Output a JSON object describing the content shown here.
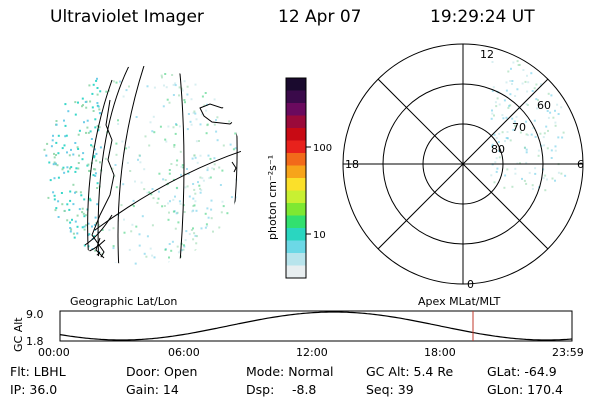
{
  "header": {
    "instrument": "Ultraviolet Imager",
    "date": "12 Apr 07",
    "time": "19:29:24 UT"
  },
  "colorbar": {
    "unit_label": "photon cm⁻²s⁻¹",
    "tick_labels": [
      "100",
      "10"
    ],
    "colors_top_to_bottom": [
      "#1a0a2e",
      "#3a0a4a",
      "#6a0a5e",
      "#9a0a3a",
      "#c80a14",
      "#e8221c",
      "#f26a1a",
      "#f7a41a",
      "#fbe02a",
      "#c8f032",
      "#7ee832",
      "#32e06e",
      "#2ad6c0",
      "#6cd8e6",
      "#b8e4ec",
      "#e8eef0"
    ]
  },
  "left_panel": {
    "caption": "Geographic Lat/Lon",
    "point_colors": [
      "#22d3c3",
      "#5ec8e6",
      "#8fd6a8",
      "#b8e2e6",
      "#2ecc71"
    ]
  },
  "right_panel": {
    "caption": "Apex MLat/MLT",
    "mlt_labels": {
      "top": "12",
      "left": "18",
      "right": "6",
      "bottom": "0"
    },
    "mlat_labels": [
      "60",
      "70",
      "80"
    ]
  },
  "altitude_plot": {
    "ylabel": "GC Alt",
    "y_ticks": [
      "9.0",
      "1.8"
    ],
    "x_ticks": [
      "00:00",
      "06:00",
      "12:00",
      "18:00",
      "23:59"
    ],
    "current_time_marker_color": "#c0392b"
  },
  "info": {
    "flt": "Flt: LBHL",
    "ip": "IP: 36.0",
    "door": "Door: Open",
    "gain": "Gain: 14",
    "mode": "Mode: Normal",
    "dsp_label": "Dsp:",
    "dsp_value": "-8.8",
    "gc_alt": "GC Alt: 5.4 Re",
    "seq": "Seq: 39",
    "glat": "GLat: -64.9",
    "glon": "GLon: 170.4"
  }
}
